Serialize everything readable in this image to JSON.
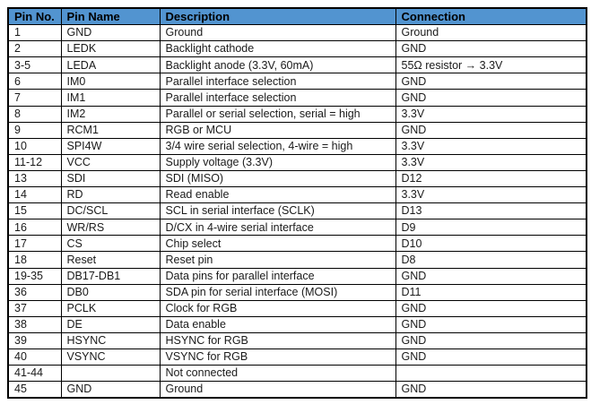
{
  "table": {
    "header_bg": "#5294d0",
    "header_text_color": "#000000",
    "border_color": "#000000",
    "headers": [
      "Pin No.",
      "Pin Name",
      "Description",
      "Connection"
    ],
    "rows": [
      [
        "1",
        "GND",
        "Ground",
        "Ground"
      ],
      [
        "2",
        "LEDK",
        "Backlight cathode",
        "GND"
      ],
      [
        "3-5",
        "LEDA",
        "Backlight anode (3.3V, 60mA)",
        "55Ω resistor → 3.3V"
      ],
      [
        "6",
        "IM0",
        "Parallel interface selection",
        "GND"
      ],
      [
        "7",
        "IM1",
        "Parallel interface selection",
        "GND"
      ],
      [
        "8",
        "IM2",
        "Parallel or serial selection, serial = high",
        "3.3V"
      ],
      [
        "9",
        "RCM1",
        "RGB or MCU",
        "GND"
      ],
      [
        "10",
        "SPI4W",
        "3/4 wire serial selection, 4-wire = high",
        "3.3V"
      ],
      [
        "11-12",
        "VCC",
        "Supply voltage (3.3V)",
        "3.3V"
      ],
      [
        "13",
        "SDI",
        "SDI (MISO)",
        "D12"
      ],
      [
        "14",
        "RD",
        "Read enable",
        "3.3V"
      ],
      [
        "15",
        "DC/SCL",
        "SCL in serial interface (SCLK)",
        "D13"
      ],
      [
        "16",
        "WR/RS",
        "D/CX in 4-wire serial interface",
        "D9"
      ],
      [
        "17",
        "CS",
        "Chip select",
        "D10"
      ],
      [
        "18",
        "Reset",
        "Reset pin",
        "D8"
      ],
      [
        "19-35",
        "DB17-DB1",
        "Data pins for parallel interface",
        "GND"
      ],
      [
        "36",
        "DB0",
        "SDA pin for serial interface (MOSI)",
        "D11"
      ],
      [
        "37",
        "PCLK",
        "Clock for RGB",
        "GND"
      ],
      [
        "38",
        "DE",
        "Data enable",
        "GND"
      ],
      [
        "39",
        "HSYNC",
        "HSYNC for RGB",
        "GND"
      ],
      [
        "40",
        "VSYNC",
        "VSYNC for RGB",
        "GND"
      ],
      [
        "41-44",
        "",
        "Not connected",
        ""
      ],
      [
        "45",
        "GND",
        "Ground",
        "GND"
      ]
    ]
  }
}
